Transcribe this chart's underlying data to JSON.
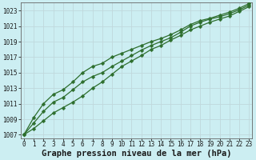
{
  "title": "Graphe pression niveau de la mer (hPa)",
  "bg_color": "#cceef2",
  "grid_color": "#b8d8dc",
  "line_color": "#2d6e2d",
  "xlim": [
    -0.3,
    23.3
  ],
  "ylim": [
    1006.5,
    1024.0
  ],
  "yticks": [
    1007,
    1009,
    1011,
    1013,
    1015,
    1017,
    1019,
    1021,
    1023
  ],
  "xticks": [
    0,
    1,
    2,
    3,
    4,
    5,
    6,
    7,
    8,
    9,
    10,
    11,
    12,
    13,
    14,
    15,
    16,
    17,
    18,
    19,
    20,
    21,
    22,
    23
  ],
  "line1": [
    1007.0,
    1007.8,
    1008.8,
    1009.8,
    1010.5,
    1011.2,
    1012.0,
    1013.0,
    1013.8,
    1014.8,
    1015.8,
    1016.5,
    1017.2,
    1018.0,
    1018.5,
    1019.2,
    1019.8,
    1020.5,
    1021.0,
    1021.5,
    1021.9,
    1022.3,
    1022.9,
    1023.5
  ],
  "line2": [
    1007.0,
    1008.5,
    1010.0,
    1011.2,
    1011.8,
    1012.8,
    1013.8,
    1014.5,
    1015.0,
    1015.8,
    1016.5,
    1017.2,
    1017.9,
    1018.5,
    1019.0,
    1019.5,
    1020.2,
    1021.0,
    1021.5,
    1021.9,
    1022.2,
    1022.6,
    1023.1,
    1023.7
  ],
  "line3": [
    1007.0,
    1009.2,
    1011.0,
    1012.2,
    1012.8,
    1013.8,
    1015.0,
    1015.8,
    1016.2,
    1017.0,
    1017.5,
    1018.0,
    1018.5,
    1019.0,
    1019.4,
    1019.9,
    1020.5,
    1021.2,
    1021.7,
    1022.0,
    1022.4,
    1022.8,
    1023.3,
    1023.9
  ],
  "title_fontsize": 7.5,
  "tick_fontsize": 5.5
}
